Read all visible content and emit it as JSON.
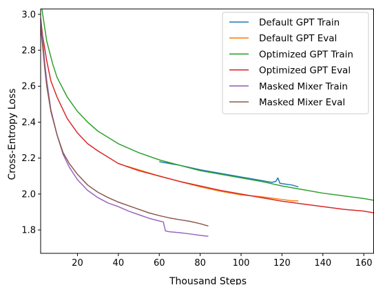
{
  "chart_data": {
    "type": "line",
    "title": "",
    "xlabel": "Thousand Steps",
    "ylabel": "Cross-Entropy Loss",
    "xlim": [
      2,
      165
    ],
    "ylim": [
      1.67,
      3.03
    ],
    "xticks": [
      20,
      40,
      60,
      80,
      100,
      120,
      140,
      160
    ],
    "yticks": [
      1.8,
      2.0,
      2.2,
      2.4,
      2.6,
      2.8,
      3.0
    ],
    "tick_labels_x": [
      "20",
      "40",
      "60",
      "80",
      "100",
      "120",
      "140",
      "160"
    ],
    "tick_labels_y": [
      "1.8",
      "2.0",
      "2.2",
      "2.4",
      "2.6",
      "2.8",
      "3.0"
    ],
    "grid": false,
    "legend_position": "top-right",
    "series": [
      {
        "name": "Default GPT Train",
        "color": "#1f77b4",
        "x": [
          60,
          70,
          80,
          90,
          95,
          100,
          105,
          110,
          115,
          117,
          118,
          119,
          120,
          125,
          128
        ],
        "y": [
          2.18,
          2.16,
          2.135,
          2.115,
          2.105,
          2.095,
          2.085,
          2.075,
          2.065,
          2.07,
          2.09,
          2.06,
          2.058,
          2.05,
          2.04
        ]
      },
      {
        "name": "Default GPT Eval",
        "color": "#ff7f0e",
        "x": [
          44,
          50,
          60,
          70,
          80,
          90,
          100,
          110,
          120,
          125,
          128
        ],
        "y": [
          2.155,
          2.135,
          2.1,
          2.07,
          2.04,
          2.015,
          1.995,
          1.985,
          1.97,
          1.962,
          1.962
        ]
      },
      {
        "name": "Optimized GPT Train",
        "color": "#2ca02c",
        "x": [
          2,
          3,
          5,
          8,
          10,
          15,
          20,
          25,
          30,
          40,
          50,
          60,
          70,
          80,
          90,
          100,
          110,
          120,
          130,
          140,
          150,
          160,
          165
        ],
        "y": [
          3.1,
          3.0,
          2.85,
          2.72,
          2.65,
          2.54,
          2.46,
          2.4,
          2.35,
          2.28,
          2.23,
          2.19,
          2.16,
          2.13,
          2.11,
          2.09,
          2.07,
          2.045,
          2.025,
          2.005,
          1.99,
          1.975,
          1.965
        ]
      },
      {
        "name": "Optimized GPT Eval",
        "color": "#d62728",
        "x": [
          2,
          3,
          5,
          7,
          10,
          15,
          20,
          25,
          30,
          40,
          50,
          60,
          70,
          80,
          90,
          100,
          110,
          120,
          130,
          140,
          150,
          160,
          165
        ],
        "y": [
          2.98,
          2.88,
          2.74,
          2.63,
          2.54,
          2.42,
          2.34,
          2.28,
          2.24,
          2.17,
          2.13,
          2.1,
          2.07,
          2.045,
          2.02,
          2.0,
          1.98,
          1.96,
          1.945,
          1.93,
          1.915,
          1.905,
          1.895
        ]
      },
      {
        "name": "Masked Mixer Train",
        "color": "#9467bd",
        "x": [
          2,
          3,
          4,
          5,
          7,
          10,
          13,
          16,
          20,
          25,
          30,
          35,
          40,
          45,
          50,
          55,
          60,
          62,
          63,
          65,
          70,
          75,
          80,
          84
        ],
        "y": [
          2.96,
          2.86,
          2.73,
          2.63,
          2.47,
          2.33,
          2.22,
          2.15,
          2.08,
          2.02,
          1.98,
          1.95,
          1.93,
          1.905,
          1.885,
          1.865,
          1.85,
          1.845,
          1.795,
          1.79,
          1.785,
          1.778,
          1.77,
          1.765
        ]
      },
      {
        "name": "Masked Mixer Eval",
        "color": "#8c564b",
        "x": [
          2,
          3,
          4,
          5,
          7,
          10,
          13,
          16,
          20,
          25,
          30,
          35,
          40,
          45,
          50,
          55,
          60,
          65,
          70,
          75,
          80,
          84
        ],
        "y": [
          2.94,
          2.82,
          2.7,
          2.6,
          2.46,
          2.33,
          2.23,
          2.17,
          2.11,
          2.05,
          2.01,
          1.98,
          1.955,
          1.935,
          1.915,
          1.895,
          1.88,
          1.867,
          1.857,
          1.848,
          1.835,
          1.822
        ]
      }
    ]
  }
}
